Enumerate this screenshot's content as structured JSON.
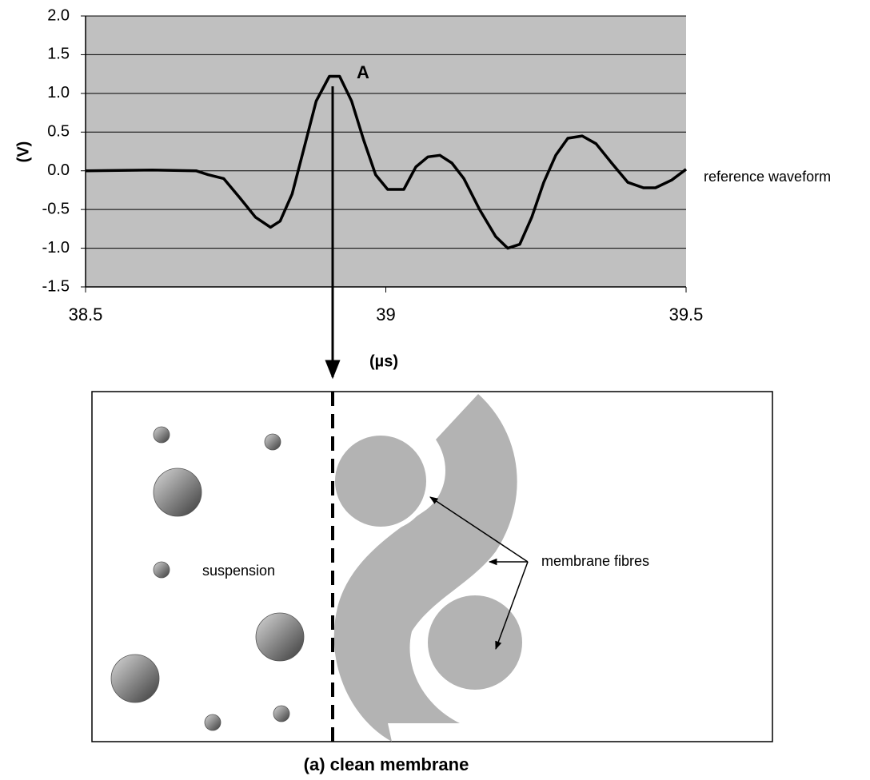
{
  "chart_data": {
    "type": "line",
    "x_label": "(µs)",
    "y_label": "(V)",
    "annotations": [
      "A",
      "reference waveform"
    ],
    "x": [
      38.5,
      38.611,
      38.684,
      38.704,
      38.73,
      38.757,
      38.783,
      38.808,
      38.824,
      38.844,
      38.864,
      38.884,
      38.906,
      38.923,
      38.943,
      38.963,
      38.983,
      39.003,
      39.03,
      39.05,
      39.07,
      39.09,
      39.11,
      39.13,
      39.156,
      39.183,
      39.203,
      39.223,
      39.243,
      39.263,
      39.283,
      39.303,
      39.327,
      39.35,
      39.376,
      39.403,
      39.429,
      39.449,
      39.476,
      39.5
    ],
    "values": [
      0,
      0.01,
      0,
      -0.05,
      -0.1,
      -0.35,
      -0.6,
      -0.73,
      -0.65,
      -0.3,
      0.3,
      0.9,
      1.22,
      1.22,
      0.9,
      0.4,
      -0.05,
      -0.24,
      -0.24,
      0.05,
      0.18,
      0.2,
      0.1,
      -0.1,
      -0.5,
      -0.85,
      -1.0,
      -0.95,
      -0.6,
      -0.15,
      0.2,
      0.42,
      0.45,
      0.35,
      0.1,
      -0.15,
      -0.22,
      -0.22,
      -0.12,
      0.02
    ],
    "color": "#000000",
    "background": "#c0c0c0",
    "grid": true,
    "xlim": [
      38.5,
      39.5
    ],
    "xticks": [
      38.5,
      39,
      39.5
    ],
    "ylim": [
      -1.5,
      2.0
    ],
    "yticks": [
      -1.5,
      {
        "value": -1,
        "label": "-1.0"
      },
      -0.5,
      {
        "value": 0,
        "label": "0.0"
      },
      0.5,
      {
        "value": 1,
        "label": "1.0"
      },
      1.5,
      {
        "value": 2,
        "label": "2.0"
      }
    ]
  },
  "diagram": {
    "suspension_label": "suspension",
    "fibres_label": "membrane fibres",
    "caption": "(a) clean membrane"
  }
}
